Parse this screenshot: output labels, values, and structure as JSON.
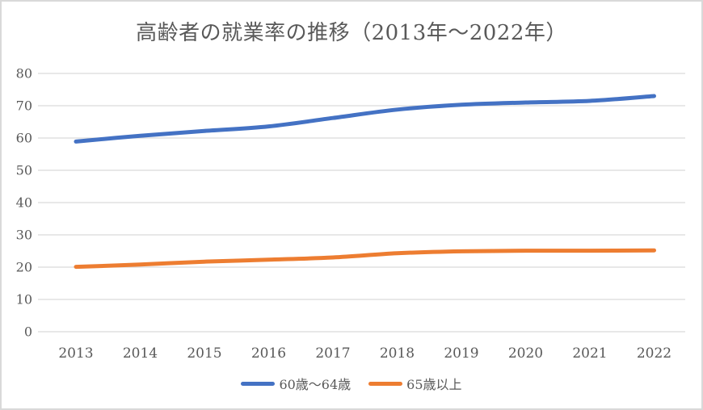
{
  "window": {
    "background": "#ffffff",
    "border_color": "#d9d9d9"
  },
  "chart_data": {
    "type": "line",
    "title": "高齢者の就業率の推移（2013年〜2022年）",
    "categories": [
      "2013",
      "2014",
      "2015",
      "2016",
      "2017",
      "2018",
      "2019",
      "2020",
      "2021",
      "2022"
    ],
    "series": [
      {
        "key": "60-64",
        "name": "60歳〜64歳",
        "color": "#4472C4",
        "values": [
          58.9,
          60.7,
          62.2,
          63.6,
          66.2,
          68.8,
          70.3,
          71.0,
          71.5,
          73.0
        ]
      },
      {
        "key": "65-plus",
        "name": "65歳以上",
        "color": "#ED7D31",
        "values": [
          20.1,
          20.8,
          21.7,
          22.3,
          23.0,
          24.3,
          24.9,
          25.1,
          25.1,
          25.2
        ]
      }
    ],
    "xlabel": "",
    "ylabel": "",
    "ylim": [
      0,
      80
    ],
    "yticks": [
      0,
      10,
      20,
      30,
      40,
      50,
      60,
      70,
      80
    ],
    "grid": true,
    "gridline_color": "#d9d9d9",
    "axis_text_color": "#595959",
    "legend_position": "bottom",
    "line_width": 5,
    "smooth": true
  }
}
